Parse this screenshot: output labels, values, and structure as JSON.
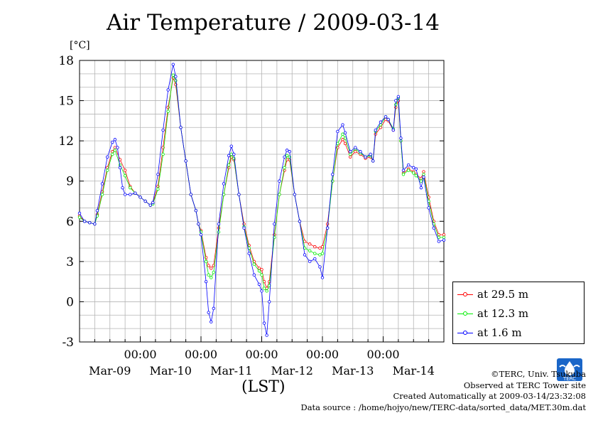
{
  "title": "Air Temperature / 2009-03-14",
  "y_unit": "[°C]",
  "x_axis_label": "(LST)",
  "legend": [
    {
      "label": "at 29.5 m",
      "color": "#ff0000"
    },
    {
      "label": "at 12.3 m",
      "color": "#00ee00"
    },
    {
      "label": "at 1.6 m",
      "color": "#0000ff"
    }
  ],
  "credits": {
    "copyright": "©TERC, Univ. Tsukuba",
    "observed": "Observed at TERC Tower site",
    "created": "Created Automatically at 2009-03-14/23:32:08",
    "source": "Data source : /home/hojyo/new/TERC-data/sorted_data/MET.30m.dat"
  },
  "logo": {
    "text": "TERC",
    "color": "#1a66c8"
  },
  "chart_data": {
    "type": "line",
    "title": "Air Temperature / 2009-03-14",
    "ylabel": "[°C]",
    "xlabel": "(LST)",
    "ylim": [
      -3,
      18
    ],
    "yticks": [
      -3,
      0,
      3,
      6,
      9,
      12,
      15,
      18
    ],
    "xlim_hours": [
      0,
      144
    ],
    "x_time_ticks": [
      {
        "hour": 24,
        "label": "00:00"
      },
      {
        "hour": 48,
        "label": "00:00"
      },
      {
        "hour": 72,
        "label": "00:00"
      },
      {
        "hour": 96,
        "label": "00:00"
      },
      {
        "hour": 120,
        "label": "00:00"
      }
    ],
    "x_date_labels": [
      {
        "hour": 12,
        "label": "Mar-09"
      },
      {
        "hour": 36,
        "label": "Mar-10"
      },
      {
        "hour": 60,
        "label": "Mar-11"
      },
      {
        "hour": 84,
        "label": "Mar-12"
      },
      {
        "hour": 108,
        "label": "Mar-13"
      },
      {
        "hour": 132,
        "label": "Mar-14"
      }
    ],
    "grid": true,
    "legend_position": "bottom-right outside",
    "marker": "open-circle",
    "series": [
      {
        "name": "at 29.5 m",
        "color": "#ff0000",
        "points": [
          [
            0,
            6.4
          ],
          [
            2,
            6.0
          ],
          [
            4,
            5.9
          ],
          [
            6,
            5.8
          ],
          [
            7,
            6.5
          ],
          [
            9,
            8.2
          ],
          [
            11,
            10.0
          ],
          [
            13,
            11.2
          ],
          [
            14,
            11.5
          ],
          [
            16,
            10.6
          ],
          [
            18,
            9.8
          ],
          [
            20,
            8.6
          ],
          [
            22,
            8.1
          ],
          [
            24,
            7.8
          ],
          [
            26,
            7.5
          ],
          [
            28,
            7.2
          ],
          [
            29,
            7.4
          ],
          [
            31,
            8.6
          ],
          [
            33,
            11.5
          ],
          [
            35,
            14.5
          ],
          [
            37,
            16.7
          ],
          [
            38,
            16.2
          ],
          [
            40,
            13.0
          ],
          [
            42,
            10.5
          ],
          [
            44,
            8.0
          ],
          [
            46,
            6.8
          ],
          [
            47,
            5.8
          ],
          [
            48,
            5.3
          ],
          [
            50,
            3.3
          ],
          [
            51,
            2.7
          ],
          [
            52,
            2.5
          ],
          [
            53,
            2.7
          ],
          [
            55,
            5.5
          ],
          [
            57,
            8.0
          ],
          [
            59,
            10.0
          ],
          [
            60,
            10.8
          ],
          [
            61,
            10.6
          ],
          [
            63,
            8.0
          ],
          [
            65,
            5.8
          ],
          [
            67,
            4.2
          ],
          [
            69,
            3.0
          ],
          [
            71,
            2.5
          ],
          [
            72,
            2.4
          ],
          [
            73,
            1.5
          ],
          [
            74,
            1.0
          ],
          [
            75,
            1.5
          ],
          [
            77,
            5.0
          ],
          [
            79,
            8.0
          ],
          [
            81,
            9.8
          ],
          [
            82,
            10.6
          ],
          [
            83,
            10.6
          ],
          [
            85,
            8.0
          ],
          [
            87,
            6.0
          ],
          [
            89,
            4.5
          ],
          [
            91,
            4.3
          ],
          [
            93,
            4.1
          ],
          [
            95,
            4.0
          ],
          [
            96,
            4.1
          ],
          [
            98,
            5.8
          ],
          [
            100,
            9.0
          ],
          [
            102,
            11.5
          ],
          [
            104,
            12.1
          ],
          [
            105,
            11.8
          ],
          [
            107,
            10.8
          ],
          [
            109,
            11.2
          ],
          [
            111,
            11.0
          ],
          [
            113,
            10.7
          ],
          [
            115,
            10.8
          ],
          [
            116,
            10.5
          ],
          [
            117,
            12.5
          ],
          [
            119,
            13.0
          ],
          [
            121,
            13.6
          ],
          [
            122,
            13.5
          ],
          [
            124,
            12.8
          ],
          [
            125,
            14.5
          ],
          [
            126,
            15.0
          ],
          [
            127,
            12.0
          ],
          [
            128,
            9.6
          ],
          [
            130,
            9.9
          ],
          [
            132,
            9.7
          ],
          [
            133,
            9.5
          ],
          [
            135,
            9.2
          ],
          [
            136,
            9.7
          ],
          [
            138,
            7.8
          ],
          [
            140,
            6.0
          ],
          [
            142,
            5.0
          ],
          [
            144,
            5.0
          ]
        ]
      },
      {
        "name": "at 12.3 m",
        "color": "#00ee00",
        "points": [
          [
            0,
            6.3
          ],
          [
            2,
            6.0
          ],
          [
            4,
            5.9
          ],
          [
            6,
            5.8
          ],
          [
            7,
            6.4
          ],
          [
            9,
            8.0
          ],
          [
            11,
            9.8
          ],
          [
            13,
            11.0
          ],
          [
            14,
            11.3
          ],
          [
            16,
            10.2
          ],
          [
            18,
            9.4
          ],
          [
            20,
            8.5
          ],
          [
            22,
            8.1
          ],
          [
            24,
            7.8
          ],
          [
            26,
            7.5
          ],
          [
            28,
            7.2
          ],
          [
            29,
            7.3
          ],
          [
            31,
            8.4
          ],
          [
            33,
            11.0
          ],
          [
            35,
            14.2
          ],
          [
            37,
            16.9
          ],
          [
            38,
            16.5
          ],
          [
            40,
            13.0
          ],
          [
            42,
            10.5
          ],
          [
            44,
            8.0
          ],
          [
            46,
            6.8
          ],
          [
            47,
            5.8
          ],
          [
            48,
            5.2
          ],
          [
            50,
            3.0
          ],
          [
            51,
            2.0
          ],
          [
            52,
            1.8
          ],
          [
            53,
            2.2
          ],
          [
            55,
            5.2
          ],
          [
            57,
            8.0
          ],
          [
            59,
            10.2
          ],
          [
            60,
            11.0
          ],
          [
            61,
            10.7
          ],
          [
            63,
            8.0
          ],
          [
            65,
            5.6
          ],
          [
            67,
            4.0
          ],
          [
            69,
            2.8
          ],
          [
            71,
            2.3
          ],
          [
            72,
            2.0
          ],
          [
            73,
            1.0
          ],
          [
            74,
            0.8
          ],
          [
            75,
            1.2
          ],
          [
            77,
            4.8
          ],
          [
            79,
            8.0
          ],
          [
            81,
            10.0
          ],
          [
            82,
            10.9
          ],
          [
            83,
            10.8
          ],
          [
            85,
            8.0
          ],
          [
            87,
            6.0
          ],
          [
            89,
            4.0
          ],
          [
            91,
            3.8
          ],
          [
            93,
            3.6
          ],
          [
            95,
            3.5
          ],
          [
            96,
            3.6
          ],
          [
            98,
            5.5
          ],
          [
            100,
            9.0
          ],
          [
            102,
            11.8
          ],
          [
            104,
            12.5
          ],
          [
            105,
            12.2
          ],
          [
            107,
            11.0
          ],
          [
            109,
            11.4
          ],
          [
            111,
            11.1
          ],
          [
            113,
            10.8
          ],
          [
            115,
            10.9
          ],
          [
            116,
            10.5
          ],
          [
            117,
            12.7
          ],
          [
            119,
            13.2
          ],
          [
            121,
            13.8
          ],
          [
            122,
            13.6
          ],
          [
            124,
            12.9
          ],
          [
            125,
            14.7
          ],
          [
            126,
            15.2
          ],
          [
            127,
            12.0
          ],
          [
            128,
            9.5
          ],
          [
            130,
            9.8
          ],
          [
            132,
            9.6
          ],
          [
            133,
            9.4
          ],
          [
            135,
            9.0
          ],
          [
            136,
            9.5
          ],
          [
            138,
            7.5
          ],
          [
            140,
            5.8
          ],
          [
            142,
            4.8
          ],
          [
            144,
            4.8
          ]
        ]
      },
      {
        "name": "at 1.6 m",
        "color": "#0000ff",
        "points": [
          [
            0,
            6.6
          ],
          [
            2,
            6.0
          ],
          [
            4,
            5.9
          ],
          [
            6,
            5.8
          ],
          [
            7,
            6.8
          ],
          [
            9,
            8.8
          ],
          [
            11,
            10.8
          ],
          [
            13,
            11.9
          ],
          [
            14,
            12.1
          ],
          [
            15,
            11.5
          ],
          [
            16,
            10.0
          ],
          [
            17,
            8.5
          ],
          [
            18,
            8.0
          ],
          [
            20,
            8.0
          ],
          [
            22,
            8.1
          ],
          [
            24,
            7.8
          ],
          [
            26,
            7.5
          ],
          [
            28,
            7.2
          ],
          [
            29,
            7.4
          ],
          [
            31,
            9.5
          ],
          [
            33,
            12.8
          ],
          [
            35,
            15.8
          ],
          [
            37,
            17.7
          ],
          [
            38,
            16.8
          ],
          [
            40,
            13.0
          ],
          [
            42,
            10.5
          ],
          [
            44,
            8.0
          ],
          [
            46,
            6.8
          ],
          [
            47,
            5.8
          ],
          [
            48,
            5.0
          ],
          [
            50,
            1.5
          ],
          [
            51,
            -0.8
          ],
          [
            52,
            -1.5
          ],
          [
            53,
            -0.5
          ],
          [
            55,
            5.8
          ],
          [
            57,
            8.8
          ],
          [
            59,
            10.9
          ],
          [
            60,
            11.6
          ],
          [
            61,
            11.0
          ],
          [
            63,
            8.0
          ],
          [
            65,
            5.5
          ],
          [
            67,
            3.6
          ],
          [
            69,
            2.0
          ],
          [
            71,
            1.3
          ],
          [
            72,
            0.8
          ],
          [
            73,
            -1.6
          ],
          [
            74,
            -2.5
          ],
          [
            75,
            0.0
          ],
          [
            77,
            5.8
          ],
          [
            79,
            9.0
          ],
          [
            81,
            10.8
          ],
          [
            82,
            11.3
          ],
          [
            83,
            11.2
          ],
          [
            85,
            8.0
          ],
          [
            87,
            6.0
          ],
          [
            89,
            3.5
          ],
          [
            91,
            3.0
          ],
          [
            93,
            3.2
          ],
          [
            95,
            2.6
          ],
          [
            96,
            1.8
          ],
          [
            98,
            5.5
          ],
          [
            100,
            9.5
          ],
          [
            102,
            12.7
          ],
          [
            104,
            13.2
          ],
          [
            105,
            12.6
          ],
          [
            107,
            11.2
          ],
          [
            109,
            11.5
          ],
          [
            111,
            11.2
          ],
          [
            113,
            10.8
          ],
          [
            115,
            11.0
          ],
          [
            116,
            10.5
          ],
          [
            117,
            12.8
          ],
          [
            119,
            13.4
          ],
          [
            121,
            13.8
          ],
          [
            122,
            13.6
          ],
          [
            124,
            12.8
          ],
          [
            125,
            15.0
          ],
          [
            126,
            15.3
          ],
          [
            127,
            12.2
          ],
          [
            128,
            9.8
          ],
          [
            130,
            10.2
          ],
          [
            132,
            10.0
          ],
          [
            133,
            9.9
          ],
          [
            135,
            8.5
          ],
          [
            136,
            9.3
          ],
          [
            138,
            7.0
          ],
          [
            140,
            5.5
          ],
          [
            142,
            4.5
          ],
          [
            144,
            4.6
          ]
        ]
      }
    ]
  }
}
